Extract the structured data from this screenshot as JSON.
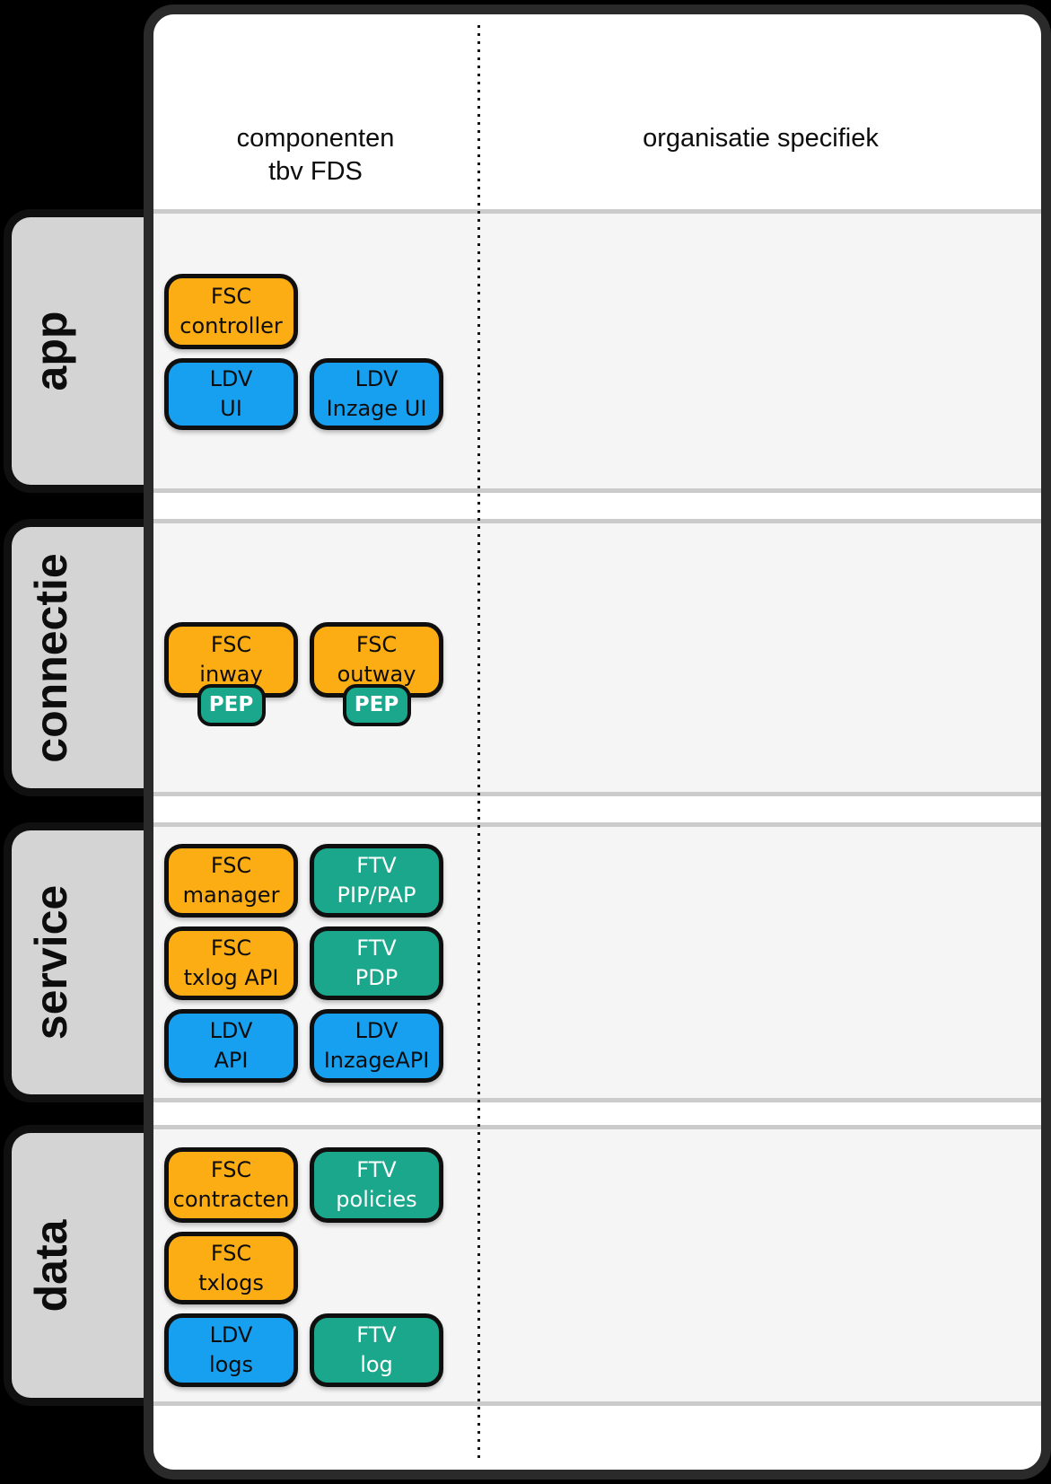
{
  "headers": {
    "left_line1": "componenten",
    "left_line2": "tbv FDS",
    "right": "organisatie specifiek"
  },
  "colors": {
    "fsc": "#FCAD14",
    "ldv": "#18A0F0",
    "ftv": "#1BA78C",
    "dark_text": "#0d0d0d",
    "light_text": "#FFFFFF",
    "band_bg": "#F5F5F5",
    "band_edge": "#CBCBCB",
    "tab_bg": "#D4D4D4",
    "outer_bg": "#000000"
  },
  "layers": [
    {
      "label": "app",
      "components": [
        {
          "lines": [
            "FSC",
            "controller"
          ],
          "kind": "fsc",
          "col": 1,
          "row": 0
        },
        {
          "lines": [
            "LDV",
            "UI"
          ],
          "kind": "ldv",
          "col": 1,
          "row": 1
        },
        {
          "lines": [
            "LDV",
            "Inzage UI"
          ],
          "kind": "ldv",
          "col": 2,
          "row": 1
        }
      ]
    },
    {
      "label": "connectie",
      "components": [
        {
          "lines": [
            "FSC",
            "inway"
          ],
          "kind": "fsc",
          "col": 1,
          "row": 0,
          "badge": "PEP"
        },
        {
          "lines": [
            "FSC",
            "outway"
          ],
          "kind": "fsc",
          "col": 2,
          "row": 0,
          "badge": "PEP"
        }
      ]
    },
    {
      "label": "service",
      "components": [
        {
          "lines": [
            "FSC",
            "manager"
          ],
          "kind": "fsc",
          "col": 1,
          "row": 0
        },
        {
          "lines": [
            "FTV",
            "PIP/PAP"
          ],
          "kind": "ftv",
          "col": 2,
          "row": 0
        },
        {
          "lines": [
            "FSC",
            "txlog API"
          ],
          "kind": "fsc",
          "col": 1,
          "row": 1
        },
        {
          "lines": [
            "FTV",
            "PDP"
          ],
          "kind": "ftv",
          "col": 2,
          "row": 1
        },
        {
          "lines": [
            "LDV",
            "API"
          ],
          "kind": "ldv",
          "col": 1,
          "row": 2
        },
        {
          "lines": [
            "LDV",
            "InzageAPI"
          ],
          "kind": "ldv",
          "col": 2,
          "row": 2
        }
      ]
    },
    {
      "label": "data",
      "components": [
        {
          "lines": [
            "FSC",
            "contracten"
          ],
          "kind": "fsc",
          "col": 1,
          "row": 0
        },
        {
          "lines": [
            "FTV",
            "policies"
          ],
          "kind": "ftv",
          "col": 2,
          "row": 0
        },
        {
          "lines": [
            "FSC",
            "txlogs"
          ],
          "kind": "fsc",
          "col": 1,
          "row": 1
        },
        {
          "lines": [
            "LDV",
            "logs"
          ],
          "kind": "ldv",
          "col": 1,
          "row": 2
        },
        {
          "lines": [
            "FTV",
            "log"
          ],
          "kind": "ftv",
          "col": 2,
          "row": 2
        }
      ]
    }
  ]
}
